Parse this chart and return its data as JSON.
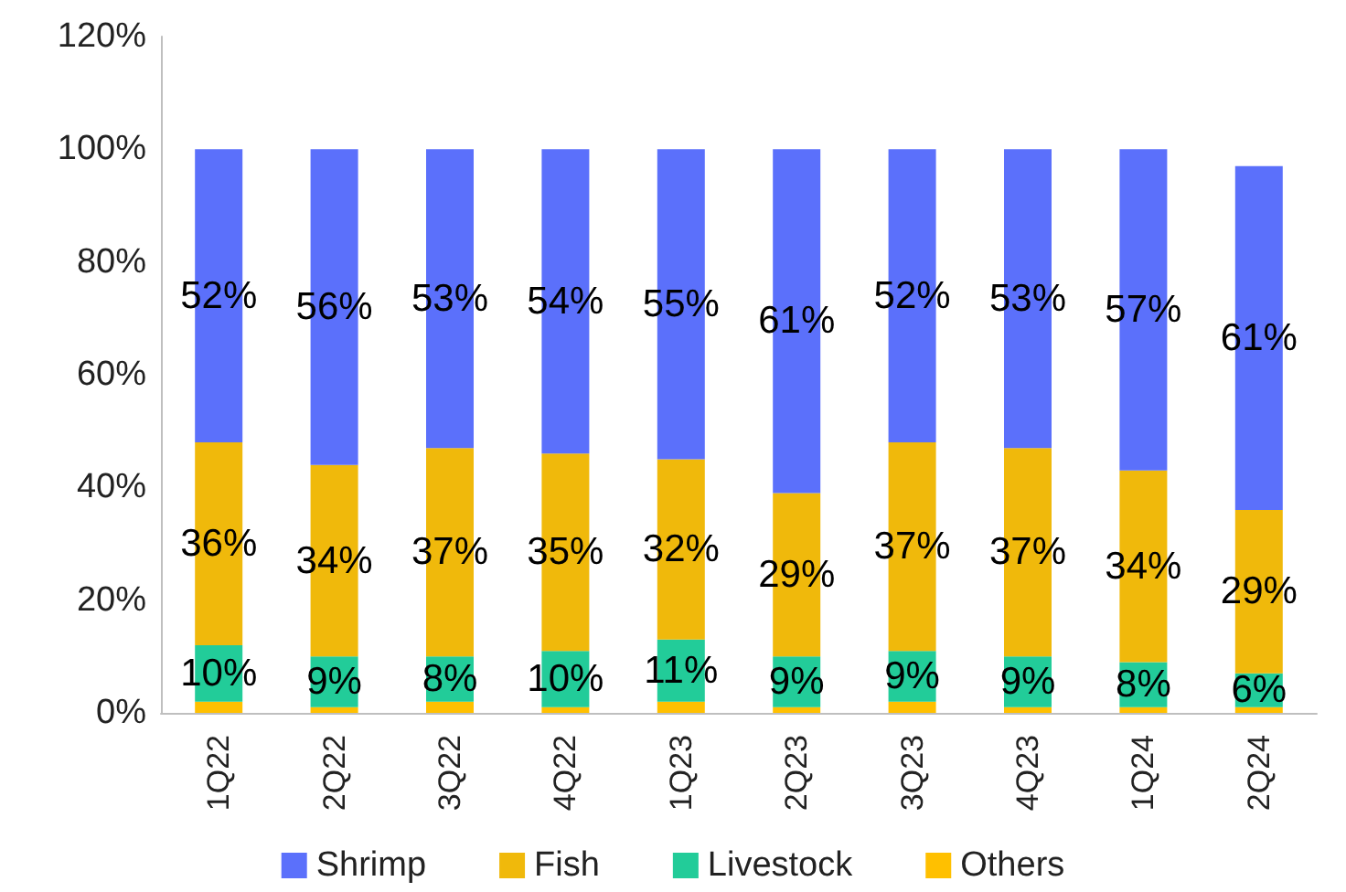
{
  "chart_data": {
    "type": "bar",
    "stacked": true,
    "categories": [
      "1Q22",
      "2Q22",
      "3Q22",
      "4Q22",
      "1Q23",
      "2Q23",
      "3Q23",
      "4Q23",
      "1Q24",
      "2Q24"
    ],
    "series": [
      {
        "name": "Others",
        "color": "#ffc000",
        "values": [
          2,
          1,
          2,
          1,
          2,
          1,
          2,
          1,
          1,
          1
        ]
      },
      {
        "name": "Livestock",
        "color": "#22cc99",
        "values": [
          10,
          9,
          8,
          10,
          11,
          9,
          9,
          9,
          8,
          6
        ],
        "value_labels": [
          "10%",
          "9%",
          "8%",
          "10%",
          "11%",
          "9%",
          "9%",
          "9%",
          "8%",
          "6%"
        ]
      },
      {
        "name": "Fish",
        "color": "#f0b90b",
        "values": [
          36,
          34,
          37,
          35,
          32,
          29,
          37,
          37,
          34,
          29
        ],
        "value_labels": [
          "36%",
          "34%",
          "37%",
          "35%",
          "32%",
          "29%",
          "37%",
          "37%",
          "34%",
          "29%"
        ]
      },
      {
        "name": "Shrimp",
        "color": "#5b70fb",
        "values": [
          52,
          56,
          53,
          54,
          55,
          61,
          52,
          53,
          57,
          61
        ],
        "value_labels": [
          "52%",
          "56%",
          "53%",
          "54%",
          "55%",
          "61%",
          "52%",
          "53%",
          "57%",
          "61%"
        ]
      }
    ],
    "ylim": [
      0,
      120
    ],
    "yticks": [
      {
        "value": 0,
        "label": "0%"
      },
      {
        "value": 20,
        "label": "20%"
      },
      {
        "value": 40,
        "label": "40%"
      },
      {
        "value": 60,
        "label": "60%"
      },
      {
        "value": 80,
        "label": "80%"
      },
      {
        "value": 100,
        "label": "100%"
      },
      {
        "value": 120,
        "label": "120%"
      }
    ],
    "grid": false,
    "legend": "bottom"
  }
}
